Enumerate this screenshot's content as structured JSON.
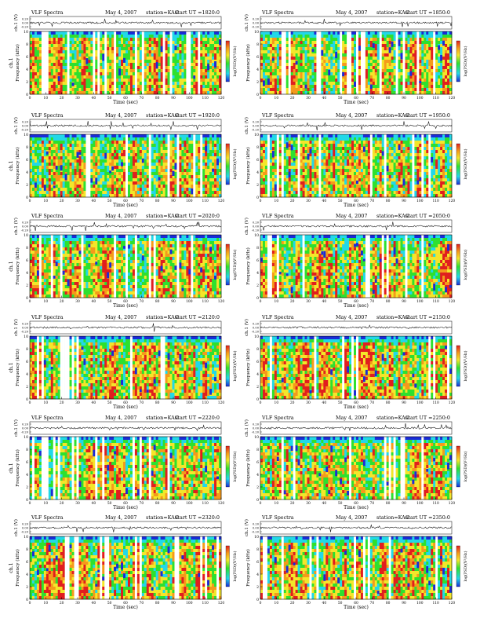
{
  "header": {
    "title": "VLF Spectra",
    "date": "May 4, 2007",
    "station": "station=KAG",
    "start_prefix": "start  UT ="
  },
  "axes": {
    "waveform_label": "ch.1 (V)",
    "waveform_ticks": [
      "0.20",
      "0.00",
      "-0.20"
    ],
    "freq_label": "Frequency (kHz)",
    "ch_label": "ch.1",
    "freq_ticks": [
      "0",
      "2",
      "4",
      "6",
      "8",
      "10"
    ],
    "time_label": "Time (sec)",
    "time_ticks": [
      "0",
      "10",
      "20",
      "30",
      "40",
      "50",
      "60",
      "70",
      "80",
      "90",
      "100",
      "110",
      "120"
    ],
    "colorbar_label": "log(PSD)(V²/Hz)"
  },
  "colors": {
    "spectrum_low": "#1a2bd8",
    "spectrum_cyan": "#22d8e8",
    "spectrum_green": "#2ee02e",
    "spectrum_yellow": "#f4e62a",
    "spectrum_orange": "#f59a1a",
    "spectrum_high": "#e11e1e",
    "dropout": "#ffffff"
  },
  "panels": [
    {
      "id": "p1",
      "start_ut": "1820:0"
    },
    {
      "id": "p2",
      "start_ut": "1850:0"
    },
    {
      "id": "p3",
      "start_ut": "1920:0"
    },
    {
      "id": "p4",
      "start_ut": "1950:0"
    },
    {
      "id": "p5",
      "start_ut": "2020:0"
    },
    {
      "id": "p6",
      "start_ut": "2050:0"
    },
    {
      "id": "p7",
      "start_ut": "2120:0"
    },
    {
      "id": "p8",
      "start_ut": "2150:0"
    },
    {
      "id": "p9",
      "start_ut": "2220:0"
    },
    {
      "id": "p10",
      "start_ut": "2250:0"
    },
    {
      "id": "p11",
      "start_ut": "2320:0"
    },
    {
      "id": "p12",
      "start_ut": "2350:0"
    }
  ],
  "chart_data": {
    "type": "heatmap",
    "xlabel": "Time (sec)",
    "ylabel": "Frequency (kHz)",
    "xlim": [
      0,
      120
    ],
    "ylim": [
      0,
      10
    ],
    "colorbar_label": "log(PSD)(V²/Hz)",
    "panel_count": 12,
    "start_times_ut": [
      "1820:0",
      "1850:0",
      "1920:0",
      "1950:0",
      "2020:0",
      "2050:0",
      "2120:0",
      "2150:0",
      "2220:0",
      "2250:0",
      "2320:0",
      "2350:0"
    ]
  }
}
